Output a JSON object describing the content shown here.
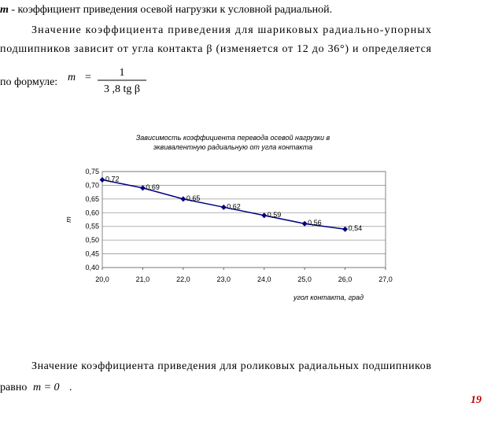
{
  "intro": {
    "symbol": "m",
    "text": " - коэффициент приведения осевой нагрузки к условной радиальной."
  },
  "paragraph_1": {
    "lines": [
      "Значение коэффициента приведения для шариковых радиально-упорных",
      "подшипников зависит от угла контакта β (изменяется от 12 до 36°) и определяется",
      "по формуле:"
    ],
    "formula": {
      "lhs": "m",
      "equals": "=",
      "numerator": "1",
      "denominator": "3 ,8 tg β"
    }
  },
  "chart_data": {
    "type": "line",
    "title": [
      "Зависимость коэффициента перевода осевой нагрузки в",
      "эквивалентную радиальную от угла контакта"
    ],
    "x_label": "угол контакта, град",
    "y_label": "m",
    "x": [
      20,
      21,
      22,
      23,
      24,
      25,
      26
    ],
    "values": [
      0.72,
      0.69,
      0.65,
      0.62,
      0.59,
      0.56,
      0.54
    ],
    "value_labels": [
      "0,72",
      "0,69",
      "0,65",
      "0,62",
      "0,59",
      "0,56",
      "0,54"
    ],
    "color": "#000080",
    "xlim": [
      20,
      27
    ],
    "xticks": [
      {
        "value": 20,
        "label": "20,0"
      },
      {
        "value": 21,
        "label": "21,0"
      },
      {
        "value": 22,
        "label": "22,0"
      },
      {
        "value": 23,
        "label": "23,0"
      },
      {
        "value": 24,
        "label": "24,0"
      },
      {
        "value": 25,
        "label": "25,0"
      },
      {
        "value": 26,
        "label": "26,0"
      },
      {
        "value": 27,
        "label": "27,0"
      }
    ],
    "ylim": [
      0.4,
      0.75
    ],
    "yticks": [
      {
        "value": 0.4,
        "label": "0,40"
      },
      {
        "value": 0.45,
        "label": "0,45"
      },
      {
        "value": 0.5,
        "label": "0,50"
      },
      {
        "value": 0.55,
        "label": "0,55"
      },
      {
        "value": 0.6,
        "label": "0,60"
      },
      {
        "value": 0.65,
        "label": "0,65"
      },
      {
        "value": 0.7,
        "label": "0,70"
      },
      {
        "value": 0.75,
        "label": "0,75"
      }
    ],
    "grid": true
  },
  "paragraph_2": {
    "lines": [
      "Значение коэффициента приведения для роликовых радиальных подшипников",
      "равно"
    ],
    "formula": "m = 0",
    "end": "."
  },
  "page_number": "19"
}
